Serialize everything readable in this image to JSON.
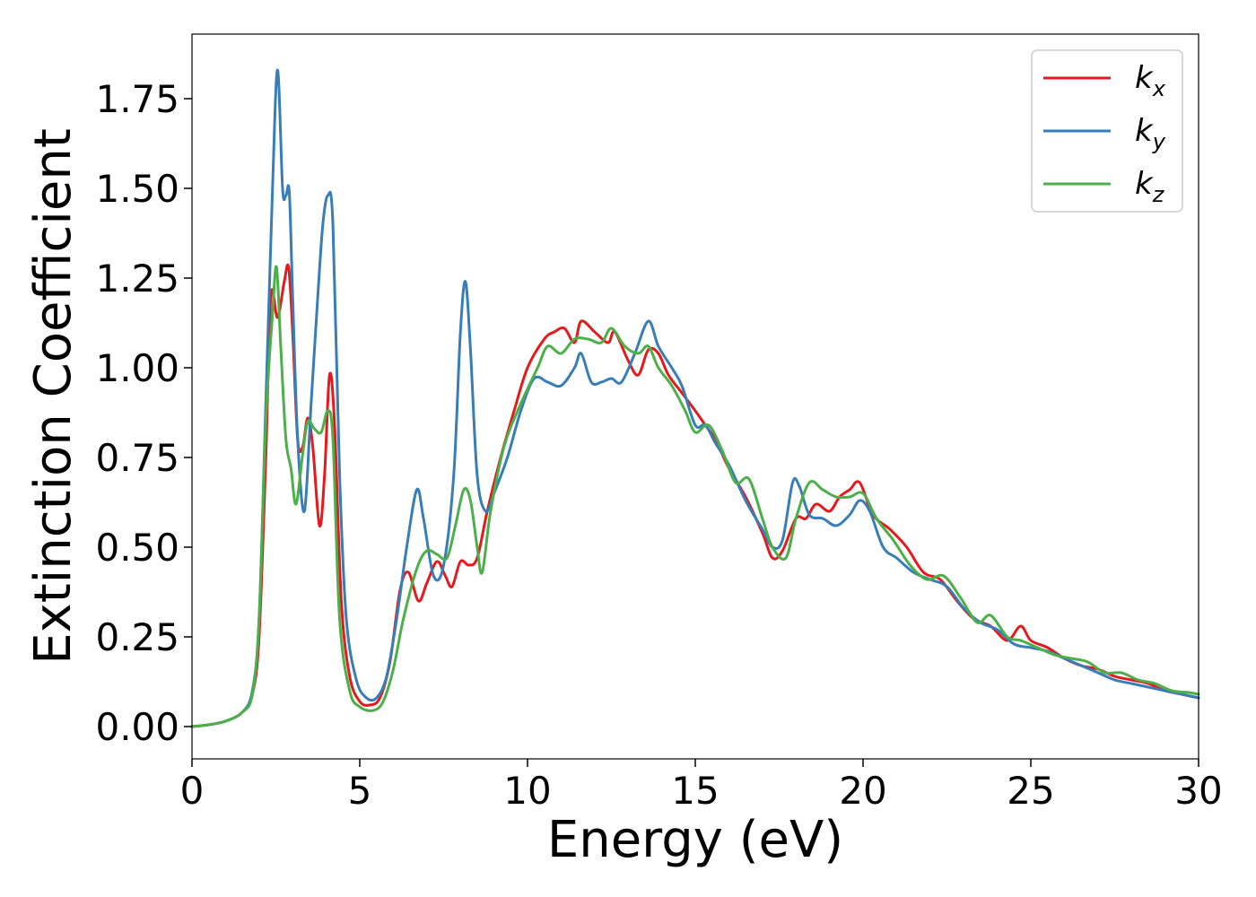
{
  "chart_data": {
    "type": "line",
    "title": "",
    "xlabel": "Energy (eV)",
    "ylabel": "Extinction Coefficient",
    "xlim": [
      0,
      30
    ],
    "ylim": [
      -0.09,
      1.93
    ],
    "x_ticks": [
      "0",
      "5",
      "10",
      "15",
      "20",
      "25",
      "30"
    ],
    "y_ticks": [
      "0.00",
      "0.25",
      "0.50",
      "0.75",
      "1.00",
      "1.25",
      "1.50",
      "1.75"
    ],
    "grid": false,
    "legend_position": "top-right",
    "series": [
      {
        "name": "k_x",
        "legend_base": "k",
        "legend_sub": "x",
        "color": "#e41a1c",
        "points": [
          [
            0,
            0.0
          ],
          [
            0.5,
            0.005
          ],
          [
            1.0,
            0.015
          ],
          [
            1.5,
            0.04
          ],
          [
            1.8,
            0.09
          ],
          [
            2.0,
            0.25
          ],
          [
            2.2,
            0.75
          ],
          [
            2.35,
            1.2
          ],
          [
            2.55,
            1.14
          ],
          [
            2.75,
            1.24
          ],
          [
            2.88,
            1.28
          ],
          [
            3.0,
            1.1
          ],
          [
            3.15,
            0.8
          ],
          [
            3.3,
            0.78
          ],
          [
            3.45,
            0.86
          ],
          [
            3.6,
            0.78
          ],
          [
            3.8,
            0.56
          ],
          [
            3.95,
            0.7
          ],
          [
            4.1,
            0.98
          ],
          [
            4.25,
            0.84
          ],
          [
            4.45,
            0.35
          ],
          [
            4.7,
            0.14
          ],
          [
            5.0,
            0.07
          ],
          [
            5.3,
            0.06
          ],
          [
            5.6,
            0.08
          ],
          [
            5.9,
            0.18
          ],
          [
            6.2,
            0.38
          ],
          [
            6.45,
            0.43
          ],
          [
            6.75,
            0.35
          ],
          [
            7.0,
            0.4
          ],
          [
            7.3,
            0.46
          ],
          [
            7.55,
            0.42
          ],
          [
            7.75,
            0.39
          ],
          [
            8.0,
            0.46
          ],
          [
            8.25,
            0.45
          ],
          [
            8.5,
            0.47
          ],
          [
            8.8,
            0.6
          ],
          [
            9.2,
            0.75
          ],
          [
            9.6,
            0.88
          ],
          [
            10.0,
            1.0
          ],
          [
            10.5,
            1.08
          ],
          [
            10.8,
            1.1
          ],
          [
            11.1,
            1.11
          ],
          [
            11.4,
            1.07
          ],
          [
            11.6,
            1.13
          ],
          [
            12.0,
            1.1
          ],
          [
            12.4,
            1.07
          ],
          [
            12.6,
            1.1
          ],
          [
            13.0,
            1.02
          ],
          [
            13.3,
            0.98
          ],
          [
            13.6,
            1.05
          ],
          [
            13.9,
            1.04
          ],
          [
            14.2,
            0.98
          ],
          [
            14.6,
            0.93
          ],
          [
            15.0,
            0.88
          ],
          [
            15.3,
            0.84
          ],
          [
            15.6,
            0.8
          ],
          [
            16.0,
            0.72
          ],
          [
            16.5,
            0.64
          ],
          [
            17.0,
            0.54
          ],
          [
            17.3,
            0.47
          ],
          [
            17.6,
            0.49
          ],
          [
            18.0,
            0.58
          ],
          [
            18.3,
            0.58
          ],
          [
            18.6,
            0.62
          ],
          [
            19.0,
            0.6
          ],
          [
            19.3,
            0.64
          ],
          [
            19.6,
            0.66
          ],
          [
            19.9,
            0.68
          ],
          [
            20.3,
            0.59
          ],
          [
            20.8,
            0.55
          ],
          [
            21.3,
            0.5
          ],
          [
            21.8,
            0.43
          ],
          [
            22.3,
            0.41
          ],
          [
            22.8,
            0.35
          ],
          [
            23.3,
            0.3
          ],
          [
            23.8,
            0.28
          ],
          [
            24.3,
            0.24
          ],
          [
            24.7,
            0.28
          ],
          [
            25.0,
            0.24
          ],
          [
            25.5,
            0.22
          ],
          [
            26.0,
            0.19
          ],
          [
            26.5,
            0.17
          ],
          [
            27.0,
            0.16
          ],
          [
            27.5,
            0.14
          ],
          [
            28.0,
            0.13
          ],
          [
            28.5,
            0.12
          ],
          [
            29.0,
            0.1
          ],
          [
            29.5,
            0.09
          ],
          [
            30.0,
            0.08
          ]
        ]
      },
      {
        "name": "k_y",
        "legend_base": "k",
        "legend_sub": "y",
        "color": "#377eb8",
        "points": [
          [
            0,
            0.0
          ],
          [
            0.5,
            0.005
          ],
          [
            1.0,
            0.015
          ],
          [
            1.5,
            0.04
          ],
          [
            1.8,
            0.1
          ],
          [
            2.0,
            0.3
          ],
          [
            2.2,
            0.9
          ],
          [
            2.4,
            1.5
          ],
          [
            2.55,
            1.83
          ],
          [
            2.7,
            1.5
          ],
          [
            2.8,
            1.48
          ],
          [
            2.9,
            1.49
          ],
          [
            3.0,
            1.2
          ],
          [
            3.15,
            0.8
          ],
          [
            3.35,
            0.6
          ],
          [
            3.55,
            0.9
          ],
          [
            3.75,
            1.2
          ],
          [
            3.9,
            1.4
          ],
          [
            4.05,
            1.48
          ],
          [
            4.2,
            1.4
          ],
          [
            4.4,
            0.7
          ],
          [
            4.6,
            0.3
          ],
          [
            4.9,
            0.13
          ],
          [
            5.2,
            0.08
          ],
          [
            5.5,
            0.08
          ],
          [
            5.8,
            0.14
          ],
          [
            6.1,
            0.3
          ],
          [
            6.4,
            0.5
          ],
          [
            6.7,
            0.66
          ],
          [
            6.9,
            0.58
          ],
          [
            7.2,
            0.42
          ],
          [
            7.5,
            0.45
          ],
          [
            7.8,
            0.7
          ],
          [
            8.0,
            1.1
          ],
          [
            8.15,
            1.24
          ],
          [
            8.3,
            1.05
          ],
          [
            8.5,
            0.7
          ],
          [
            8.75,
            0.6
          ],
          [
            9.0,
            0.65
          ],
          [
            9.4,
            0.75
          ],
          [
            9.8,
            0.88
          ],
          [
            10.2,
            0.97
          ],
          [
            10.6,
            0.96
          ],
          [
            11.0,
            0.95
          ],
          [
            11.4,
            1.0
          ],
          [
            11.6,
            1.04
          ],
          [
            11.9,
            0.96
          ],
          [
            12.2,
            0.96
          ],
          [
            12.5,
            0.97
          ],
          [
            12.8,
            0.96
          ],
          [
            13.2,
            1.04
          ],
          [
            13.6,
            1.13
          ],
          [
            13.9,
            1.06
          ],
          [
            14.3,
            1.0
          ],
          [
            14.6,
            0.95
          ],
          [
            15.0,
            0.84
          ],
          [
            15.3,
            0.84
          ],
          [
            15.6,
            0.79
          ],
          [
            16.0,
            0.73
          ],
          [
            16.5,
            0.63
          ],
          [
            17.0,
            0.55
          ],
          [
            17.3,
            0.5
          ],
          [
            17.6,
            0.52
          ],
          [
            17.9,
            0.68
          ],
          [
            18.1,
            0.67
          ],
          [
            18.4,
            0.59
          ],
          [
            18.8,
            0.58
          ],
          [
            19.2,
            0.56
          ],
          [
            19.6,
            0.59
          ],
          [
            19.9,
            0.63
          ],
          [
            20.2,
            0.6
          ],
          [
            20.6,
            0.5
          ],
          [
            21.0,
            0.47
          ],
          [
            21.5,
            0.43
          ],
          [
            22.0,
            0.41
          ],
          [
            22.5,
            0.39
          ],
          [
            23.0,
            0.33
          ],
          [
            23.5,
            0.29
          ],
          [
            24.0,
            0.27
          ],
          [
            24.5,
            0.23
          ],
          [
            25.0,
            0.22
          ],
          [
            25.5,
            0.21
          ],
          [
            26.0,
            0.19
          ],
          [
            26.5,
            0.17
          ],
          [
            27.0,
            0.15
          ],
          [
            27.5,
            0.13
          ],
          [
            28.0,
            0.12
          ],
          [
            28.5,
            0.11
          ],
          [
            29.0,
            0.1
          ],
          [
            29.5,
            0.09
          ],
          [
            30.0,
            0.08
          ]
        ]
      },
      {
        "name": "k_z",
        "legend_base": "k",
        "legend_sub": "z",
        "color": "#4daf4a",
        "points": [
          [
            0,
            0.0
          ],
          [
            0.5,
            0.005
          ],
          [
            1.0,
            0.015
          ],
          [
            1.5,
            0.04
          ],
          [
            1.8,
            0.09
          ],
          [
            2.0,
            0.3
          ],
          [
            2.2,
            0.85
          ],
          [
            2.4,
            1.15
          ],
          [
            2.52,
            1.28
          ],
          [
            2.65,
            1.05
          ],
          [
            2.8,
            0.8
          ],
          [
            2.95,
            0.72
          ],
          [
            3.1,
            0.62
          ],
          [
            3.3,
            0.76
          ],
          [
            3.45,
            0.85
          ],
          [
            3.65,
            0.83
          ],
          [
            3.85,
            0.82
          ],
          [
            4.05,
            0.88
          ],
          [
            4.2,
            0.8
          ],
          [
            4.4,
            0.3
          ],
          [
            4.7,
            0.1
          ],
          [
            5.0,
            0.055
          ],
          [
            5.4,
            0.045
          ],
          [
            5.7,
            0.07
          ],
          [
            6.0,
            0.16
          ],
          [
            6.3,
            0.3
          ],
          [
            6.7,
            0.44
          ],
          [
            7.0,
            0.49
          ],
          [
            7.3,
            0.48
          ],
          [
            7.6,
            0.47
          ],
          [
            7.85,
            0.56
          ],
          [
            8.1,
            0.66
          ],
          [
            8.3,
            0.63
          ],
          [
            8.5,
            0.5
          ],
          [
            8.65,
            0.43
          ],
          [
            8.9,
            0.6
          ],
          [
            9.3,
            0.78
          ],
          [
            9.8,
            0.9
          ],
          [
            10.3,
            1.0
          ],
          [
            10.6,
            1.06
          ],
          [
            11.0,
            1.04
          ],
          [
            11.4,
            1.08
          ],
          [
            11.8,
            1.08
          ],
          [
            12.2,
            1.07
          ],
          [
            12.5,
            1.11
          ],
          [
            12.9,
            1.06
          ],
          [
            13.3,
            1.04
          ],
          [
            13.6,
            1.06
          ],
          [
            13.9,
            1.0
          ],
          [
            14.3,
            0.95
          ],
          [
            14.7,
            0.88
          ],
          [
            15.0,
            0.82
          ],
          [
            15.4,
            0.84
          ],
          [
            15.8,
            0.77
          ],
          [
            16.2,
            0.68
          ],
          [
            16.6,
            0.69
          ],
          [
            17.0,
            0.58
          ],
          [
            17.3,
            0.5
          ],
          [
            17.7,
            0.47
          ],
          [
            18.0,
            0.58
          ],
          [
            18.4,
            0.68
          ],
          [
            18.8,
            0.66
          ],
          [
            19.2,
            0.64
          ],
          [
            19.6,
            0.64
          ],
          [
            20.0,
            0.65
          ],
          [
            20.4,
            0.58
          ],
          [
            20.9,
            0.52
          ],
          [
            21.4,
            0.45
          ],
          [
            21.9,
            0.41
          ],
          [
            22.4,
            0.42
          ],
          [
            22.9,
            0.36
          ],
          [
            23.4,
            0.29
          ],
          [
            23.8,
            0.31
          ],
          [
            24.3,
            0.25
          ],
          [
            24.7,
            0.24
          ],
          [
            25.2,
            0.22
          ],
          [
            25.7,
            0.2
          ],
          [
            26.2,
            0.19
          ],
          [
            26.7,
            0.18
          ],
          [
            27.2,
            0.15
          ],
          [
            27.7,
            0.15
          ],
          [
            28.2,
            0.13
          ],
          [
            28.7,
            0.12
          ],
          [
            29.2,
            0.1
          ],
          [
            29.7,
            0.095
          ],
          [
            30.0,
            0.09
          ]
        ]
      }
    ]
  }
}
